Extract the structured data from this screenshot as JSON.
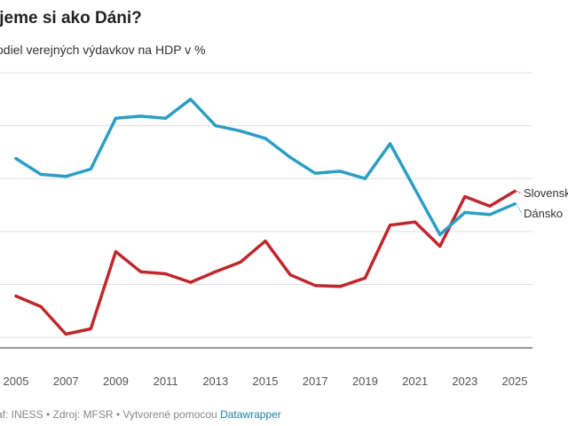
{
  "chart_data": {
    "type": "line",
    "title": "ijeme si ako Dáni?",
    "subtitle": "odiel verejných výdavkov na HDP v %",
    "x": [
      2005,
      2006,
      2007,
      2008,
      2009,
      2010,
      2011,
      2012,
      2013,
      2014,
      2015,
      2016,
      2017,
      2018,
      2019,
      2020,
      2021,
      2022,
      2023,
      2024,
      2025
    ],
    "x_tick_labels": [
      "2005",
      "2007",
      "2009",
      "2011",
      "2013",
      "2015",
      "2017",
      "2019",
      "2021",
      "2023",
      "2025"
    ],
    "ylim": [
      34.0,
      60.0
    ],
    "y_gridlines": [
      35.0,
      40.0,
      45.0,
      50.0,
      55.0,
      60.0
    ],
    "grid": true,
    "legend": "line-end labels (right)",
    "series": [
      {
        "name": "Dánsko",
        "color": "#2b9ec6",
        "values": [
          51.9,
          50.4,
          50.2,
          50.9,
          55.7,
          55.9,
          55.7,
          57.5,
          55.0,
          54.5,
          53.8,
          52.0,
          50.5,
          50.7,
          50.0,
          53.3,
          49.0,
          44.7,
          46.8,
          46.6,
          47.6
        ]
      },
      {
        "name": "Slovensko",
        "color": "#c0272d",
        "values": [
          38.9,
          37.9,
          35.3,
          35.8,
          43.1,
          41.2,
          41.0,
          40.2,
          41.2,
          42.1,
          44.1,
          40.9,
          39.9,
          39.8,
          40.6,
          45.6,
          45.9,
          43.6,
          48.3,
          47.4,
          48.8
        ]
      }
    ]
  },
  "footer": {
    "prefix": "af: INESS • Zdroj: MFSR • Vytvorené pomocou",
    "link": "Datawrapper"
  }
}
